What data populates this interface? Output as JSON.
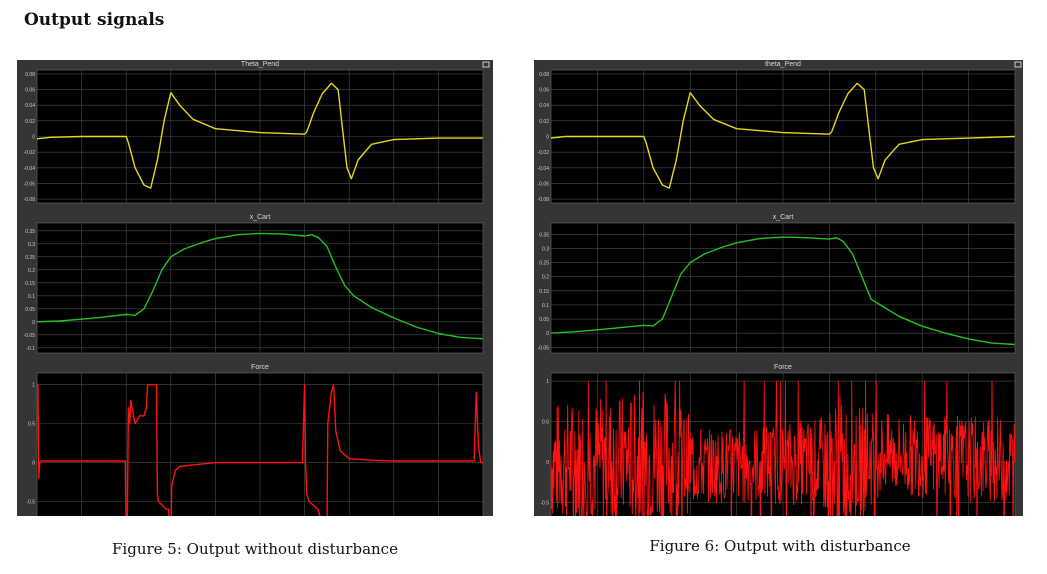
{
  "page": {
    "heading": "Output signals"
  },
  "figures": [
    {
      "caption": "Figure 5: Output without disturbance"
    },
    {
      "caption": "Figure 6: Output with disturbance"
    }
  ],
  "colors": {
    "theta": "#e6d81c",
    "x": "#23c21f",
    "force": "#ff1212",
    "axes_bg": "#000000",
    "frame": "#353535",
    "grid": "#4a4a4a",
    "tick_text": "#cfcfcf"
  },
  "chart_data": [
    {
      "figure": "Figure 5",
      "plots": [
        {
          "title": "Theta_Pend",
          "type": "line",
          "xlim": [
            0,
            10
          ],
          "ylim": [
            -0.085,
            0.085
          ],
          "xticks": [
            0,
            1,
            2,
            3,
            4,
            5,
            6,
            7,
            8,
            9,
            10
          ],
          "yticks": [
            -0.08,
            -0.06,
            -0.04,
            -0.02,
            0,
            0.02,
            0.04,
            0.06,
            0.08
          ],
          "ytick_labels": [
            "-0.08",
            "-0.06",
            "-0.04",
            "-0.02",
            "0",
            "0.02",
            "0.04",
            "0.06",
            "0.08"
          ],
          "color": "#e6d81c",
          "series": [
            {
              "x": [
                0,
                0.3,
                1,
                2,
                2.05,
                2.2,
                2.4,
                2.55,
                2.7,
                2.85,
                3,
                3.2,
                3.5,
                4,
                5,
                6,
                6.05,
                6.2,
                6.4,
                6.6,
                6.75,
                6.85,
                6.95,
                7.05,
                7.2,
                7.5,
                8,
                9,
                10
              ],
              "y": [
                -0.003,
                -0.001,
                0,
                0,
                -0.008,
                -0.04,
                -0.062,
                -0.066,
                -0.03,
                0.02,
                0.056,
                0.04,
                0.022,
                0.01,
                0.005,
                0.003,
                0.006,
                0.03,
                0.055,
                0.068,
                0.06,
                0.01,
                -0.04,
                -0.054,
                -0.03,
                -0.01,
                -0.004,
                -0.002,
                -0.002
              ]
            }
          ]
        },
        {
          "title": "x_Cart",
          "type": "line",
          "xlim": [
            0,
            10
          ],
          "ylim": [
            -0.12,
            0.38
          ],
          "xticks": [
            0,
            1,
            2,
            3,
            4,
            5,
            6,
            7,
            8,
            9,
            10
          ],
          "yticks": [
            -0.1,
            -0.05,
            0,
            0.05,
            0.1,
            0.15,
            0.2,
            0.25,
            0.3,
            0.35
          ],
          "ytick_labels": [
            "-0.1",
            "-0.05",
            "0",
            "0.05",
            "0.1",
            "0.15",
            "0.2",
            "0.25",
            "0.3",
            "0.35"
          ],
          "color": "#23c21f",
          "series": [
            {
              "x": [
                0,
                0.5,
                1,
                1.5,
                2,
                2.2,
                2.4,
                2.6,
                2.8,
                3,
                3.3,
                3.7,
                4,
                4.5,
                5,
                5.5,
                6,
                6.15,
                6.3,
                6.5,
                6.7,
                6.9,
                7.1,
                7.5,
                8,
                8.5,
                9,
                9.5,
                10
              ],
              "y": [
                0,
                0.003,
                0.01,
                0.018,
                0.028,
                0.025,
                0.05,
                0.12,
                0.2,
                0.25,
                0.28,
                0.305,
                0.32,
                0.335,
                0.34,
                0.338,
                0.33,
                0.335,
                0.325,
                0.29,
                0.21,
                0.14,
                0.1,
                0.055,
                0.015,
                -0.02,
                -0.045,
                -0.06,
                -0.065
              ]
            }
          ]
        },
        {
          "title": "Force",
          "type": "line",
          "xlim": [
            0,
            10
          ],
          "ylim": [
            -1.2,
            1.15
          ],
          "xticks": [
            0,
            1,
            2,
            3,
            4,
            5,
            6,
            7,
            8,
            9,
            10
          ],
          "yticks": [
            -1,
            -0.5,
            0,
            0.5,
            1
          ],
          "ytick_labels": [
            "-1",
            "-0.5",
            "0",
            "0.5",
            "1"
          ],
          "color": "#ff1212",
          "series": [
            {
              "x": [
                0,
                0.02,
                0.04,
                0.06,
                0.1,
                0.5,
                1,
                1.5,
                1.98,
                2.0,
                2.02,
                2.05,
                2.08,
                2.1,
                2.2,
                2.3,
                2.4,
                2.45,
                2.48,
                2.5,
                2.52,
                2.6,
                2.68,
                2.7,
                2.72,
                2.9,
                2.95,
                3.0,
                3.02,
                3.1,
                3.2,
                3.5,
                4,
                4.5,
                5,
                5.5,
                5.95,
                6.0,
                6.02,
                6.05,
                6.1,
                6.3,
                6.5,
                6.52,
                6.6,
                6.65,
                6.7,
                6.8,
                7,
                7.5,
                8,
                8.5,
                9,
                9.5,
                9.8,
                9.85,
                9.9,
                9.95,
                10
              ],
              "y": [
                1,
                1,
                -0.2,
                0,
                0.02,
                0.02,
                0.02,
                0.02,
                0.02,
                -1,
                -1,
                0.7,
                0.5,
                0.8,
                0.5,
                0.6,
                0.6,
                0.7,
                1,
                1,
                1,
                1,
                1,
                -0.4,
                -0.5,
                -0.6,
                -0.6,
                -1,
                -0.3,
                -0.1,
                -0.05,
                -0.03,
                0,
                0,
                0,
                0,
                0,
                1,
                0.02,
                -0.4,
                -0.5,
                -0.6,
                -1,
                0.5,
                0.9,
                1,
                0.4,
                0.15,
                0.05,
                0.03,
                0.02,
                0.02,
                0.02,
                0.02,
                0.02,
                0.9,
                0.2,
                0,
                0
              ]
            }
          ]
        }
      ]
    },
    {
      "figure": "Figure 6",
      "plots": [
        {
          "title": "theta_Pend",
          "type": "line",
          "xlim": [
            0,
            10
          ],
          "ylim": [
            -0.085,
            0.085
          ],
          "xticks": [
            0,
            1,
            2,
            3,
            4,
            5,
            6,
            7,
            8,
            9,
            10
          ],
          "yticks": [
            -0.08,
            -0.06,
            -0.04,
            -0.02,
            0,
            0.02,
            0.04,
            0.06,
            0.08
          ],
          "ytick_labels": [
            "-0.08",
            "-0.06",
            "-0.04",
            "-0.02",
            "0",
            "0.02",
            "0.04",
            "0.06",
            "0.08"
          ],
          "color": "#e6d81c",
          "series": [
            {
              "x": [
                0,
                0.3,
                1,
                2,
                2.05,
                2.2,
                2.4,
                2.55,
                2.7,
                2.85,
                3,
                3.2,
                3.5,
                4,
                5,
                6,
                6.05,
                6.2,
                6.4,
                6.6,
                6.75,
                6.85,
                6.95,
                7.05,
                7.2,
                7.5,
                8,
                9,
                10
              ],
              "y": [
                -0.002,
                0,
                0,
                0,
                -0.008,
                -0.04,
                -0.062,
                -0.066,
                -0.03,
                0.02,
                0.056,
                0.04,
                0.022,
                0.01,
                0.005,
                0.003,
                0.006,
                0.03,
                0.055,
                0.068,
                0.06,
                0.01,
                -0.04,
                -0.054,
                -0.03,
                -0.01,
                -0.004,
                -0.002,
                0
              ]
            }
          ]
        },
        {
          "title": "x_Cart",
          "type": "line",
          "xlim": [
            0,
            10
          ],
          "ylim": [
            -0.07,
            0.39
          ],
          "xticks": [
            0,
            1,
            2,
            3,
            4,
            5,
            6,
            7,
            8,
            9,
            10
          ],
          "yticks": [
            -0.05,
            0,
            0.05,
            0.1,
            0.15,
            0.2,
            0.25,
            0.3,
            0.35
          ],
          "ytick_labels": [
            "-0.05",
            "0",
            "0.05",
            "0.1",
            "0.15",
            "0.2",
            "0.25",
            "0.3",
            "0.35"
          ],
          "color": "#23c21f",
          "series": [
            {
              "x": [
                0,
                0.5,
                1,
                1.5,
                2,
                2.2,
                2.4,
                2.6,
                2.8,
                3,
                3.3,
                3.7,
                4,
                4.5,
                5,
                5.5,
                6,
                6.15,
                6.3,
                6.5,
                6.7,
                6.9,
                7.1,
                7.5,
                8,
                8.5,
                9,
                9.5,
                10
              ],
              "y": [
                0,
                0.005,
                0.012,
                0.02,
                0.028,
                0.026,
                0.05,
                0.13,
                0.21,
                0.25,
                0.28,
                0.305,
                0.32,
                0.335,
                0.34,
                0.338,
                0.333,
                0.338,
                0.325,
                0.28,
                0.2,
                0.12,
                0.1,
                0.06,
                0.025,
                0,
                -0.02,
                -0.035,
                -0.04
              ]
            }
          ]
        },
        {
          "title": "Force",
          "type": "line",
          "xlim": [
            0,
            10
          ],
          "ylim": [
            -1.1,
            1.1
          ],
          "xticks": [
            0,
            1,
            2,
            3,
            4,
            5,
            6,
            7,
            8,
            9,
            10
          ],
          "yticks": [
            -1,
            -0.5,
            0,
            0.5,
            1
          ],
          "ytick_labels": [
            "-1",
            "-0.5",
            "0",
            "0.5",
            "1"
          ],
          "color": "#ff1212",
          "noise": {
            "x": [
              0,
              2.5,
              3.3,
              5.8,
              6.2,
              7.1,
              10
            ],
            "amplitude": [
              0.75,
              0.85,
              0.45,
              0.55,
              0.95,
              0.5,
              0.55
            ],
            "offset": [
              0,
              0.05,
              -0.05,
              0,
              -0.1,
              0.1,
              0
            ]
          }
        }
      ]
    }
  ]
}
